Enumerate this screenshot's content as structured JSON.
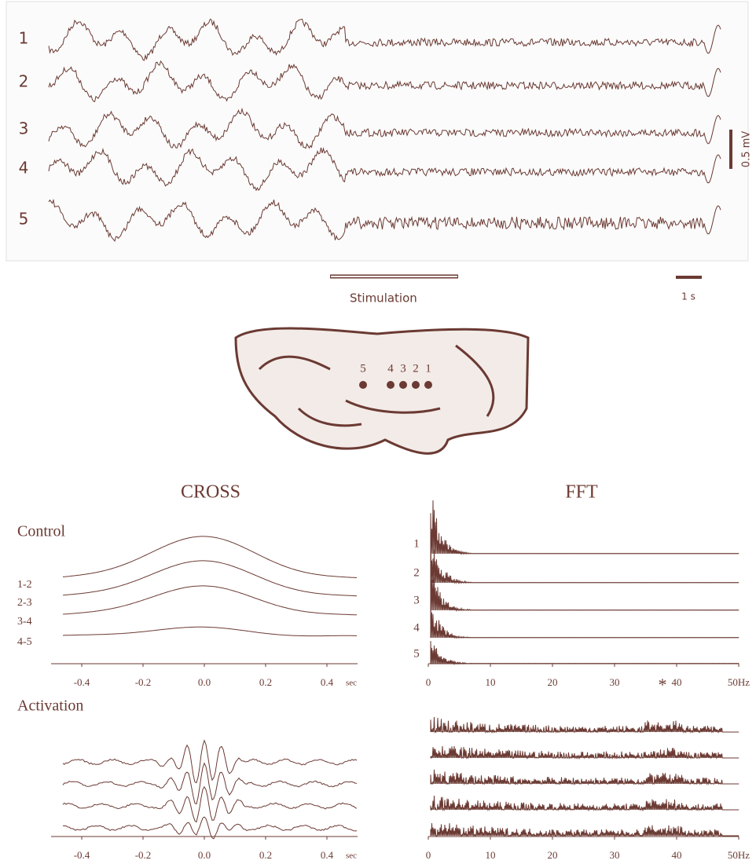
{
  "eeg": {
    "channels": [
      "1",
      "2",
      "3",
      "4",
      "5"
    ],
    "voltage_scale": "0.5 mV",
    "stimulation": "Stimulation",
    "time_scale": "1 s"
  },
  "map": {
    "electrodes": [
      "5",
      "4",
      "3",
      "2",
      "1"
    ]
  },
  "cross": {
    "title": "CROSS",
    "control_label": "Control",
    "activation_label": "Activation",
    "pairs": [
      "1-2",
      "2-3",
      "3-4",
      "4-5"
    ],
    "xlim": [
      -0.5,
      0.5
    ],
    "xticks": [
      -0.4,
      -0.2,
      {
        "value": 0,
        "label": "0.0"
      },
      0.2,
      0.4
    ],
    "x_unit": "sec"
  },
  "fft": {
    "title": "FFT",
    "channels": [
      "1",
      "2",
      "3",
      "4",
      "5"
    ],
    "xlim": [
      0,
      50
    ],
    "xticks": [
      0,
      10,
      20,
      30,
      40,
      {
        "value": 50,
        "label": "50Hz"
      }
    ],
    "annotation": "*"
  }
}
